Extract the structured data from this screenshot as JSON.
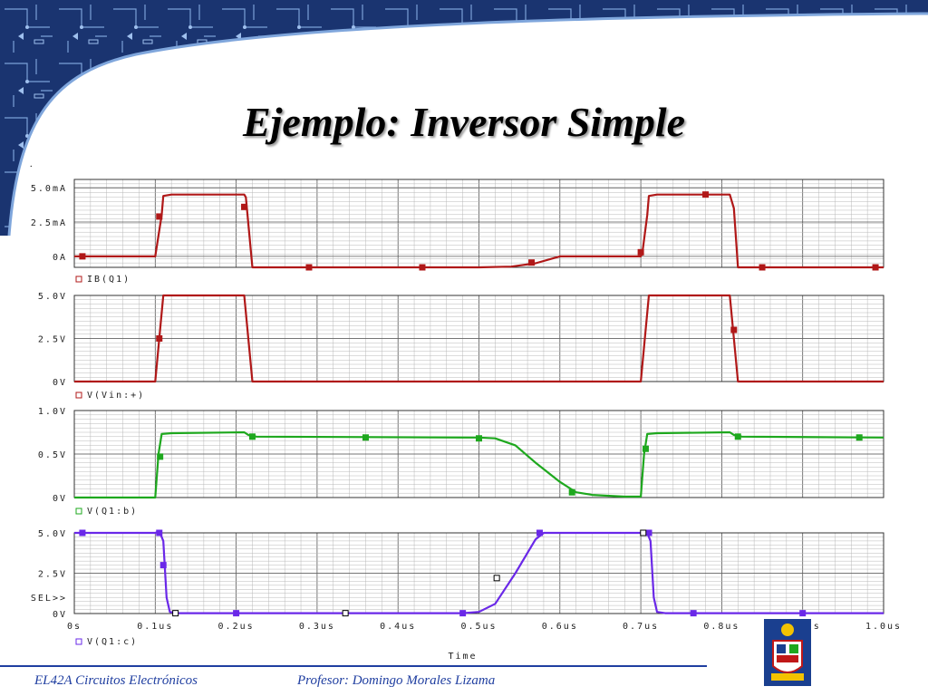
{
  "slide": {
    "title": "Ejemplo: Inversor Simple",
    "footer_left": "EL42A Circuitos Electrónicos",
    "footer_right": "Profesor: Domingo Morales Lizama"
  },
  "chart_data": [
    {
      "type": "line",
      "legend": "IB(Q1)",
      "yticks": [
        {
          "label": "5.0mA",
          "value": 5.0
        },
        {
          "label": "2.5mA",
          "value": 2.5
        },
        {
          "label": "0A",
          "value": 0
        }
      ],
      "ylim": [
        -0.8,
        5.6
      ],
      "xlim": [
        0,
        1.0
      ],
      "series": [
        {
          "color": "#b01818",
          "x": [
            0,
            0.1,
            0.108,
            0.11,
            0.12,
            0.21,
            0.212,
            0.22,
            0.5,
            0.54,
            0.57,
            0.6,
            0.7,
            0.702,
            0.708,
            0.71,
            0.72,
            0.81,
            0.815,
            0.82,
            1.0
          ],
          "y": [
            0,
            0,
            3.0,
            4.4,
            4.5,
            4.5,
            4.3,
            -0.8,
            -0.8,
            -0.75,
            -0.5,
            0,
            0,
            0.3,
            3.0,
            4.4,
            4.5,
            4.5,
            3.5,
            -0.8,
            -0.8
          ],
          "markers": [
            [
              0.01,
              0
            ],
            [
              0.105,
              2.9
            ],
            [
              0.21,
              3.6
            ],
            [
              0.29,
              -0.8
            ],
            [
              0.43,
              -0.8
            ],
            [
              0.565,
              -0.45
            ],
            [
              0.7,
              0.3
            ],
            [
              0.78,
              4.5
            ],
            [
              0.85,
              -0.8
            ],
            [
              0.99,
              -0.8
            ]
          ]
        }
      ]
    },
    {
      "type": "line",
      "legend": "V(Vin:+)",
      "yticks": [
        {
          "label": "5.0V",
          "value": 5.0
        },
        {
          "label": "2.5V",
          "value": 2.5
        },
        {
          "label": "0V",
          "value": 0
        }
      ],
      "ylim": [
        0,
        5.0
      ],
      "xlim": [
        0,
        1.0
      ],
      "series": [
        {
          "color": "#b01818",
          "x": [
            0,
            0.1,
            0.11,
            0.21,
            0.22,
            0.7,
            0.71,
            0.81,
            0.82,
            1.0
          ],
          "y": [
            0,
            0,
            5.0,
            5.0,
            0,
            0,
            5.0,
            5.0,
            0,
            0
          ],
          "markers": [
            [
              0.105,
              2.5
            ],
            [
              0.815,
              3.0
            ]
          ]
        }
      ]
    },
    {
      "type": "line",
      "legend": "V(Q1:b)",
      "yticks": [
        {
          "label": "1.0V",
          "value": 1.0
        },
        {
          "label": "0.5V",
          "value": 0.5
        },
        {
          "label": "0V",
          "value": 0
        }
      ],
      "ylim": [
        0,
        1.0
      ],
      "xlim": [
        0,
        1.0
      ],
      "series": [
        {
          "color": "#1ea81e",
          "x": [
            0,
            0.1,
            0.104,
            0.108,
            0.12,
            0.21,
            0.215,
            0.225,
            0.5,
            0.52,
            0.545,
            0.57,
            0.6,
            0.62,
            0.64,
            0.68,
            0.7,
            0.704,
            0.708,
            0.72,
            0.81,
            0.815,
            0.825,
            1.0
          ],
          "y": [
            0,
            0,
            0.5,
            0.73,
            0.74,
            0.75,
            0.72,
            0.7,
            0.69,
            0.68,
            0.6,
            0.4,
            0.18,
            0.06,
            0.03,
            0.01,
            0.01,
            0.5,
            0.73,
            0.74,
            0.75,
            0.72,
            0.7,
            0.69
          ],
          "markers": [
            [
              0.106,
              0.47
            ],
            [
              0.22,
              0.7
            ],
            [
              0.36,
              0.69
            ],
            [
              0.5,
              0.68
            ],
            [
              0.615,
              0.06
            ],
            [
              0.706,
              0.56
            ],
            [
              0.82,
              0.7
            ],
            [
              0.97,
              0.69
            ]
          ]
        }
      ]
    },
    {
      "type": "line",
      "legend": "V(Q1:c)",
      "yticks": [
        {
          "label": "5.0V",
          "value": 5.0
        },
        {
          "label": "2.5V",
          "value": 2.5
        },
        {
          "label": "0V",
          "value": 0
        }
      ],
      "ylim": [
        0,
        5.0
      ],
      "xlim": [
        0,
        1.0
      ],
      "sel_label": "SEL>>",
      "xticks": [
        {
          "label": "0s",
          "value": 0
        },
        {
          "label": "0.1us",
          "value": 0.1
        },
        {
          "label": "0.2us",
          "value": 0.2
        },
        {
          "label": "0.3us",
          "value": 0.3
        },
        {
          "label": "0.4us",
          "value": 0.4
        },
        {
          "label": "0.5us",
          "value": 0.5
        },
        {
          "label": "0.6us",
          "value": 0.6
        },
        {
          "label": "0.7us",
          "value": 0.7
        },
        {
          "label": "0.8us",
          "value": 0.8
        },
        {
          "label": "0.9us",
          "value": 0.9
        },
        {
          "label": "1.0us",
          "value": 1.0
        }
      ],
      "xlabel": "Time",
      "series": [
        {
          "color": "#6a28e8",
          "x": [
            0,
            0.1,
            0.105,
            0.11,
            0.114,
            0.118,
            0.125,
            0.48,
            0.5,
            0.52,
            0.545,
            0.57,
            0.58,
            0.7,
            0.708,
            0.712,
            0.716,
            0.72,
            0.73,
            1.0
          ],
          "y": [
            5.0,
            5.0,
            5.1,
            4.5,
            1.0,
            0.1,
            0.02,
            0.02,
            0.1,
            0.6,
            2.5,
            4.6,
            5.0,
            5.0,
            5.0,
            4.5,
            1.0,
            0.1,
            0.02,
            0.02
          ],
          "markers": [
            [
              0.01,
              5.0
            ],
            [
              0.105,
              5.0
            ],
            [
              0.11,
              3.0
            ],
            [
              0.2,
              0.02
            ],
            [
              0.48,
              0.02
            ],
            [
              0.575,
              5.0
            ],
            [
              0.71,
              5.0
            ],
            [
              0.765,
              0.02
            ],
            [
              0.9,
              0.02
            ]
          ],
          "open_markers": [
            [
              0.125,
              0.02
            ],
            [
              0.335,
              0.02
            ],
            [
              0.522,
              2.2
            ],
            [
              0.703,
              5.0
            ]
          ]
        }
      ]
    }
  ]
}
